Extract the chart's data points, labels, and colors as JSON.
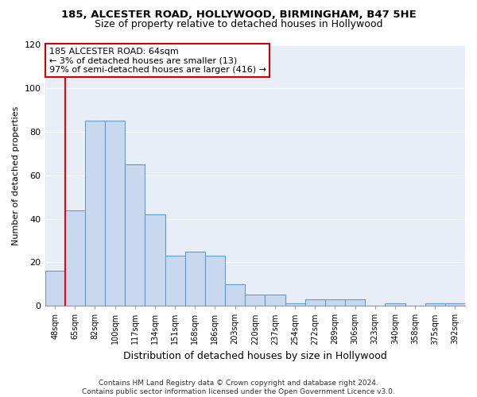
{
  "title1": "185, ALCESTER ROAD, HOLLYWOOD, BIRMINGHAM, B47 5HE",
  "title2": "Size of property relative to detached houses in Hollywood",
  "xlabel": "Distribution of detached houses by size in Hollywood",
  "ylabel": "Number of detached properties",
  "footer": "Contains HM Land Registry data © Crown copyright and database right 2024.\nContains public sector information licensed under the Open Government Licence v3.0.",
  "annotation_title": "185 ALCESTER ROAD: 64sqm",
  "annotation_line2": "← 3% of detached houses are smaller (13)",
  "annotation_line3": "97% of semi-detached houses are larger (416) →",
  "bar_labels": [
    "48sqm",
    "65sqm",
    "82sqm",
    "100sqm",
    "117sqm",
    "134sqm",
    "151sqm",
    "168sqm",
    "186sqm",
    "203sqm",
    "220sqm",
    "237sqm",
    "254sqm",
    "272sqm",
    "289sqm",
    "306sqm",
    "323sqm",
    "340sqm",
    "358sqm",
    "375sqm",
    "392sqm"
  ],
  "bar_values": [
    16,
    44,
    85,
    85,
    65,
    42,
    23,
    25,
    23,
    10,
    5,
    5,
    1,
    3,
    3,
    3,
    0,
    1,
    0,
    1,
    1
  ],
  "bar_color": "#c8d9ef",
  "bar_edge_color": "#6699cc",
  "vline_color": "red",
  "vline_x_index": 1,
  "ylim": [
    0,
    120
  ],
  "yticks": [
    0,
    20,
    40,
    60,
    80,
    100,
    120
  ],
  "annotation_box_color": "white",
  "annotation_box_edge": "#cc0000",
  "bg_color": "#ffffff",
  "plot_bg_color": "#e8eef7",
  "grid_color": "#ffffff",
  "title1_fontsize": 9.5,
  "title2_fontsize": 9,
  "xlabel_fontsize": 9,
  "ylabel_fontsize": 8,
  "footer_fontsize": 6.5,
  "annot_fontsize": 8
}
